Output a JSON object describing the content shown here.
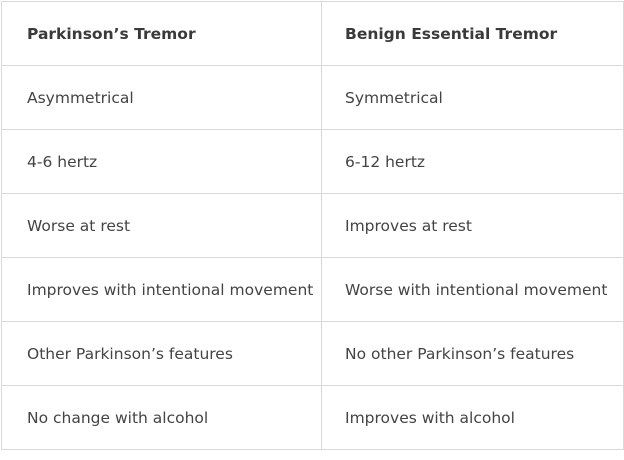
{
  "table": {
    "headers": [
      "Parkinson’s Tremor",
      "Benign Essential Tremor"
    ],
    "rows": [
      [
        "Asymmetrical",
        "Symmetrical"
      ],
      [
        "4-6 hertz",
        "6-12 hertz"
      ],
      [
        "Worse at rest",
        "Improves at rest"
      ],
      [
        "Improves with intentional movement",
        "Worse with intentional movement"
      ],
      [
        "Other Parkinson’s features",
        "No other Parkinson’s features"
      ],
      [
        "No change with alcohol",
        "Improves with alcohol"
      ]
    ]
  }
}
